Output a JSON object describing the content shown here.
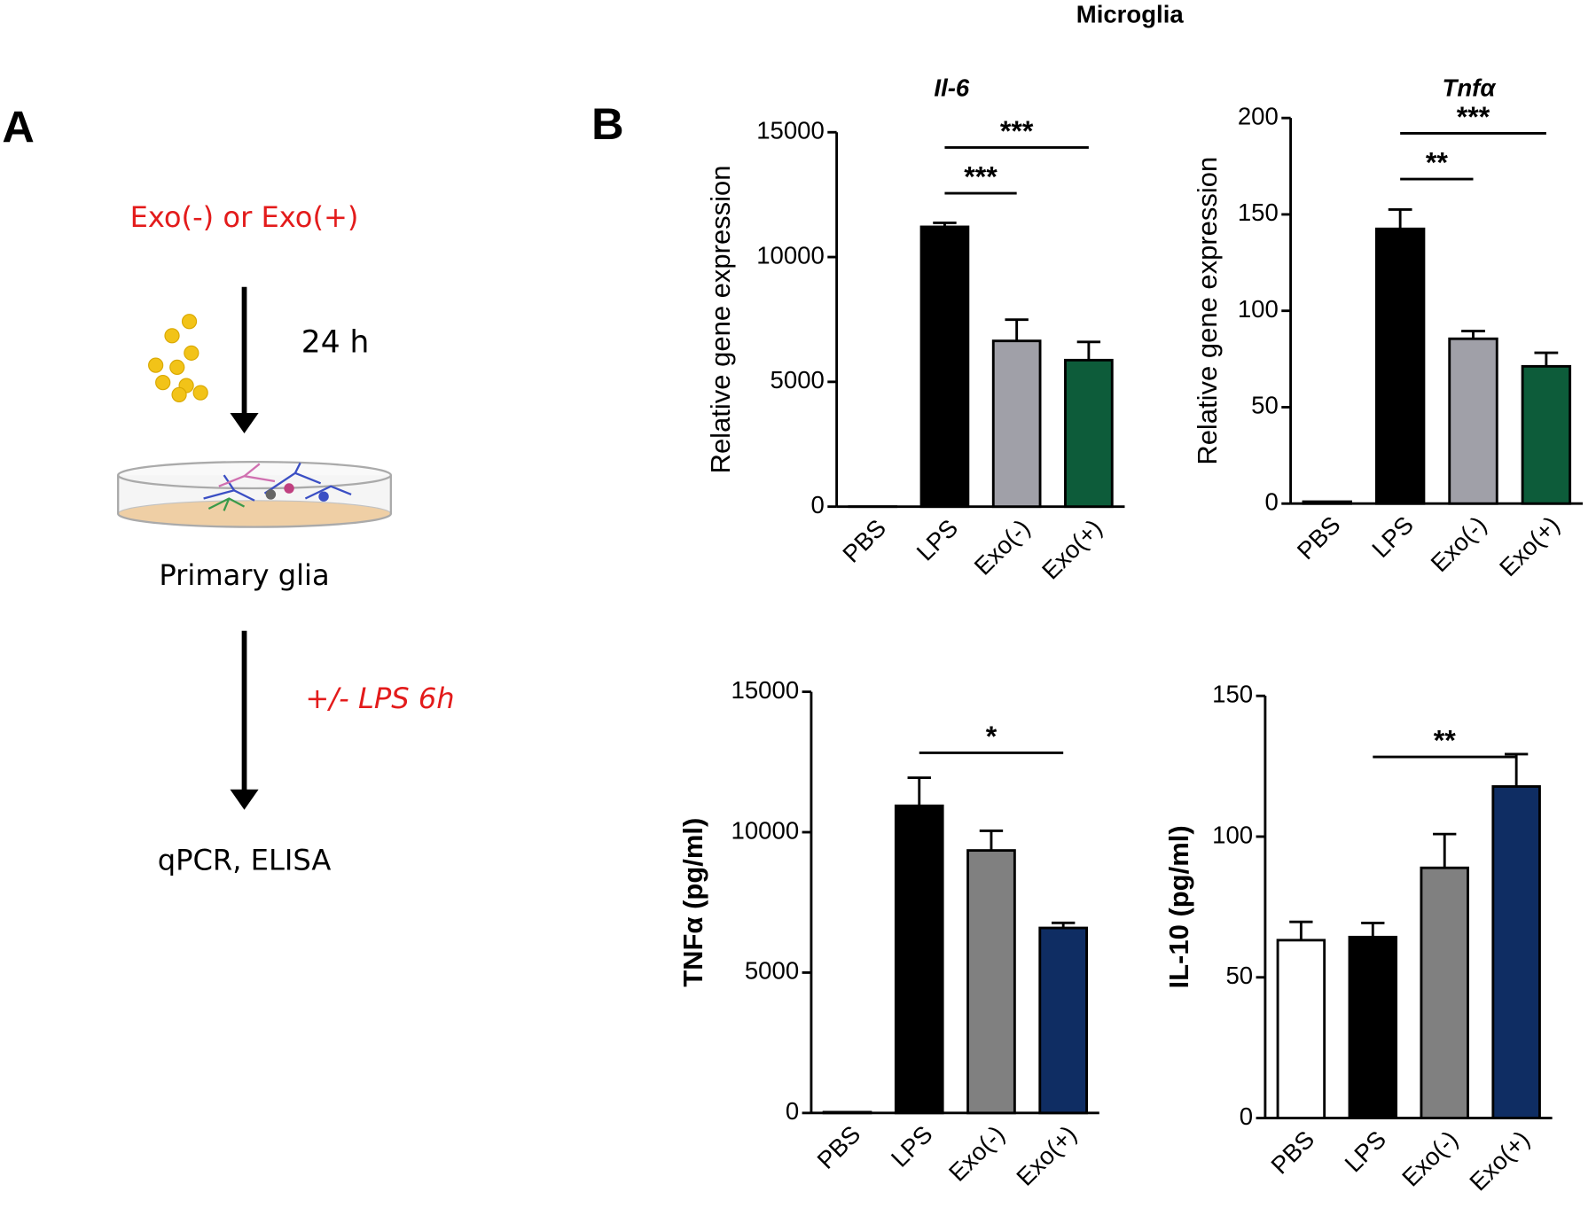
{
  "figure_title": "Microglia",
  "panels": [
    "A",
    "B"
  ],
  "diagram": {
    "treatment": "Exo(-) or Exo(+)",
    "time": "24 h",
    "cells": "Primary glia",
    "stimulus": "+/- LPS 6h",
    "readout": "qPCR, ELISA"
  },
  "chart_data": [
    {
      "type": "bar",
      "title": "Il-6",
      "ylabel": "Relative gene expression",
      "categories": [
        "PBS",
        "LPS",
        "Exo(-)",
        "Exo(+)"
      ],
      "values": [
        1,
        11210,
        6640,
        5870
      ],
      "errors": [
        0,
        160,
        850,
        730
      ],
      "colors": [
        "#ffffff",
        "#000000",
        "#a0a0a8",
        "#0d5c3a"
      ],
      "ylim": [
        0,
        15000
      ],
      "yticks": [
        0,
        5000,
        10000,
        15000
      ],
      "annotations": [
        {
          "text": "***",
          "between": [
            1,
            2
          ]
        },
        {
          "text": "***",
          "between": [
            1,
            3
          ]
        }
      ]
    },
    {
      "type": "bar",
      "title": "Tnfα",
      "ylabel": "Relative gene expression",
      "categories": [
        "PBS",
        "LPS",
        "Exo(-)",
        "Exo(+)"
      ],
      "values": [
        1,
        142.5,
        85.5,
        71.2
      ],
      "errors": [
        0,
        10,
        4,
        7
      ],
      "colors": [
        "#ffffff",
        "#000000",
        "#a0a0a8",
        "#0d5c3a"
      ],
      "ylim": [
        0,
        200
      ],
      "yticks": [
        0,
        50,
        100,
        150,
        200
      ],
      "annotations": [
        {
          "text": "**",
          "between": [
            1,
            2
          ]
        },
        {
          "text": "***",
          "between": [
            1,
            3
          ]
        }
      ]
    },
    {
      "type": "bar",
      "ylabel": "TNFα (pg/ml)",
      "categories": [
        "PBS",
        "LPS",
        "Exo(-)",
        "Exo(+)"
      ],
      "values": [
        30,
        10940,
        9350,
        6590
      ],
      "errors": [
        0,
        1000,
        700,
        180
      ],
      "colors": [
        "#ffffff",
        "#000000",
        "#808080",
        "#0f2d63"
      ],
      "ylim": [
        0,
        15000
      ],
      "yticks": [
        0,
        5000,
        10000,
        15000
      ],
      "annotations": [
        {
          "text": "*",
          "between": [
            1,
            3
          ]
        }
      ]
    },
    {
      "type": "bar",
      "ylabel": "IL-10 (pg/ml)",
      "categories": [
        "PBS",
        "LPS",
        "Exo(-)",
        "Exo(+)"
      ],
      "values": [
        63.2,
        64.3,
        88.9,
        117.8
      ],
      "errors": [
        6.5,
        5,
        12,
        11.5
      ],
      "colors": [
        "#ffffff",
        "#000000",
        "#808080",
        "#0f2d63"
      ],
      "ylim": [
        0,
        150
      ],
      "yticks": [
        0,
        50,
        100,
        150
      ],
      "annotations": [
        {
          "text": "**",
          "between": [
            1,
            3
          ]
        }
      ]
    }
  ]
}
